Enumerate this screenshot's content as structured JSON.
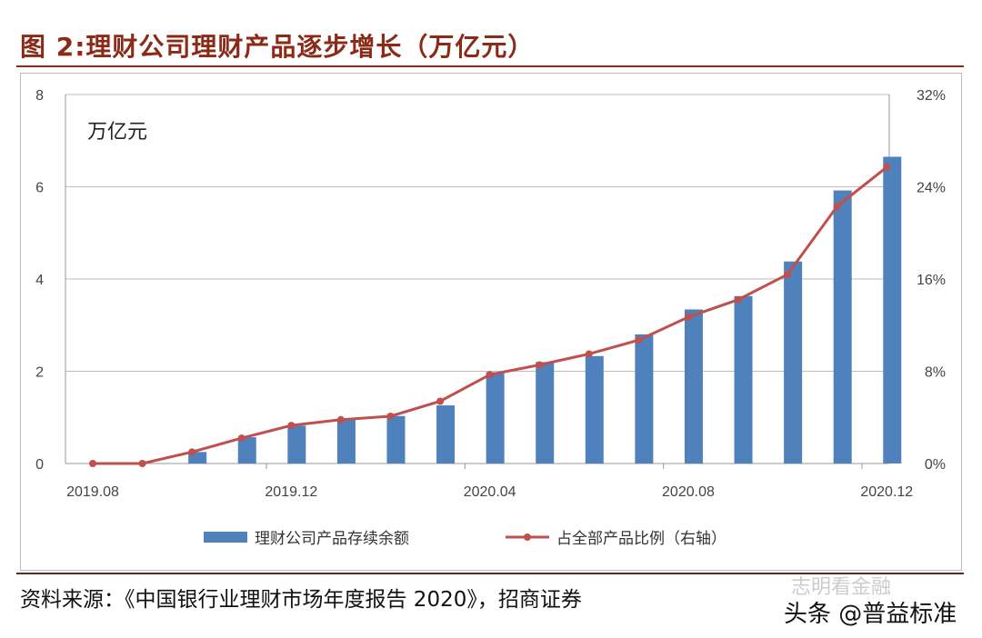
{
  "title": "图 2:理财公司理财产品逐步增长（万亿元）",
  "source": "资料来源：《中国银行业理财市场年度报告 2020》，招商证券",
  "watermark": {
    "line1": "志明看金融",
    "line2": "头条 @普益标准"
  },
  "chart_data": {
    "type": "bar+line",
    "unit_label": "万亿元",
    "categories": [
      "2019.08",
      "2019.09",
      "2019.10",
      "2019.11",
      "2019.12",
      "2020.01",
      "2020.02",
      "2020.03",
      "2020.04",
      "2020.05",
      "2020.06",
      "2020.07",
      "2020.08",
      "2020.09",
      "2020.10",
      "2020.11",
      "2020.12"
    ],
    "x_tick_labels": [
      "2019.08",
      "2019.12",
      "2020.04",
      "2020.08",
      "2020.12"
    ],
    "series": [
      {
        "name": "理财公司产品存续余额",
        "type": "bar",
        "axis": "left",
        "color": "#4f81bd",
        "values": [
          0,
          0,
          0.25,
          0.57,
          0.82,
          0.96,
          1.03,
          1.26,
          1.98,
          2.2,
          2.33,
          2.8,
          3.34,
          3.63,
          4.38,
          5.92,
          6.65
        ]
      },
      {
        "name": "占全部产品比例（右轴）",
        "type": "line",
        "axis": "right",
        "color": "#c0504d",
        "values": [
          0,
          0,
          1.0,
          2.2,
          3.3,
          3.8,
          4.1,
          5.4,
          7.7,
          8.55,
          9.5,
          10.7,
          12.7,
          14.2,
          16.4,
          22.3,
          25.7
        ]
      }
    ],
    "y_left": {
      "range": [
        0,
        8
      ],
      "ticks": [
        "0",
        "2",
        "4",
        "6",
        "8"
      ]
    },
    "y_right": {
      "range": [
        0,
        32
      ],
      "ticks": [
        "0%",
        "8%",
        "16%",
        "24%",
        "32%"
      ]
    },
    "grid": true,
    "legend": "bottom"
  }
}
